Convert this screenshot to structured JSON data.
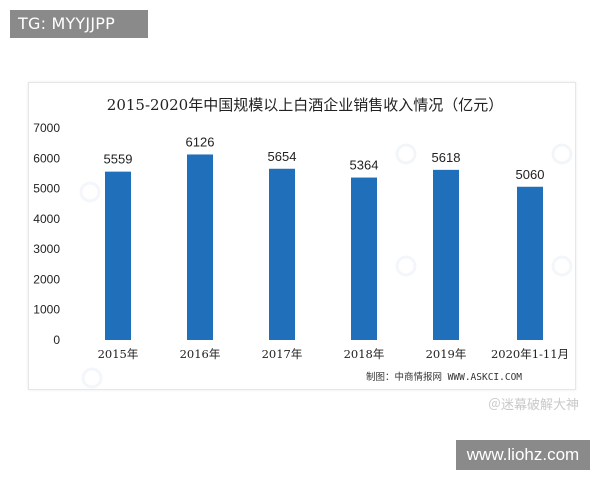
{
  "badge_top": "TG: MYYJJPP",
  "badge_bottom": "www.liohz.com",
  "weibo_watermark": "＠迷幕破解大神",
  "colors": {
    "bar": "#1f6fba",
    "frame": "#e6e6e6",
    "badge": "#8a8a8a"
  },
  "chart_data": {
    "type": "bar",
    "title": "2015-2020年中国规模以上白酒企业销售收入情况（亿元）",
    "categories": [
      "2015年",
      "2016年",
      "2017年",
      "2018年",
      "2019年",
      "2020年1-11月"
    ],
    "values": [
      5559,
      6126,
      5654,
      5364,
      5618,
      5060
    ],
    "data_labels": [
      "5559",
      "6126",
      "5654",
      "5364",
      "5618",
      "5060"
    ],
    "yticks": [
      "0",
      "1000",
      "2000",
      "3000",
      "4000",
      "5000",
      "6000",
      "7000"
    ],
    "ylim": [
      0,
      7000
    ],
    "grid": false,
    "legend": "none",
    "source": "制图：中商情报网 WWW.ASKCI.COM"
  }
}
